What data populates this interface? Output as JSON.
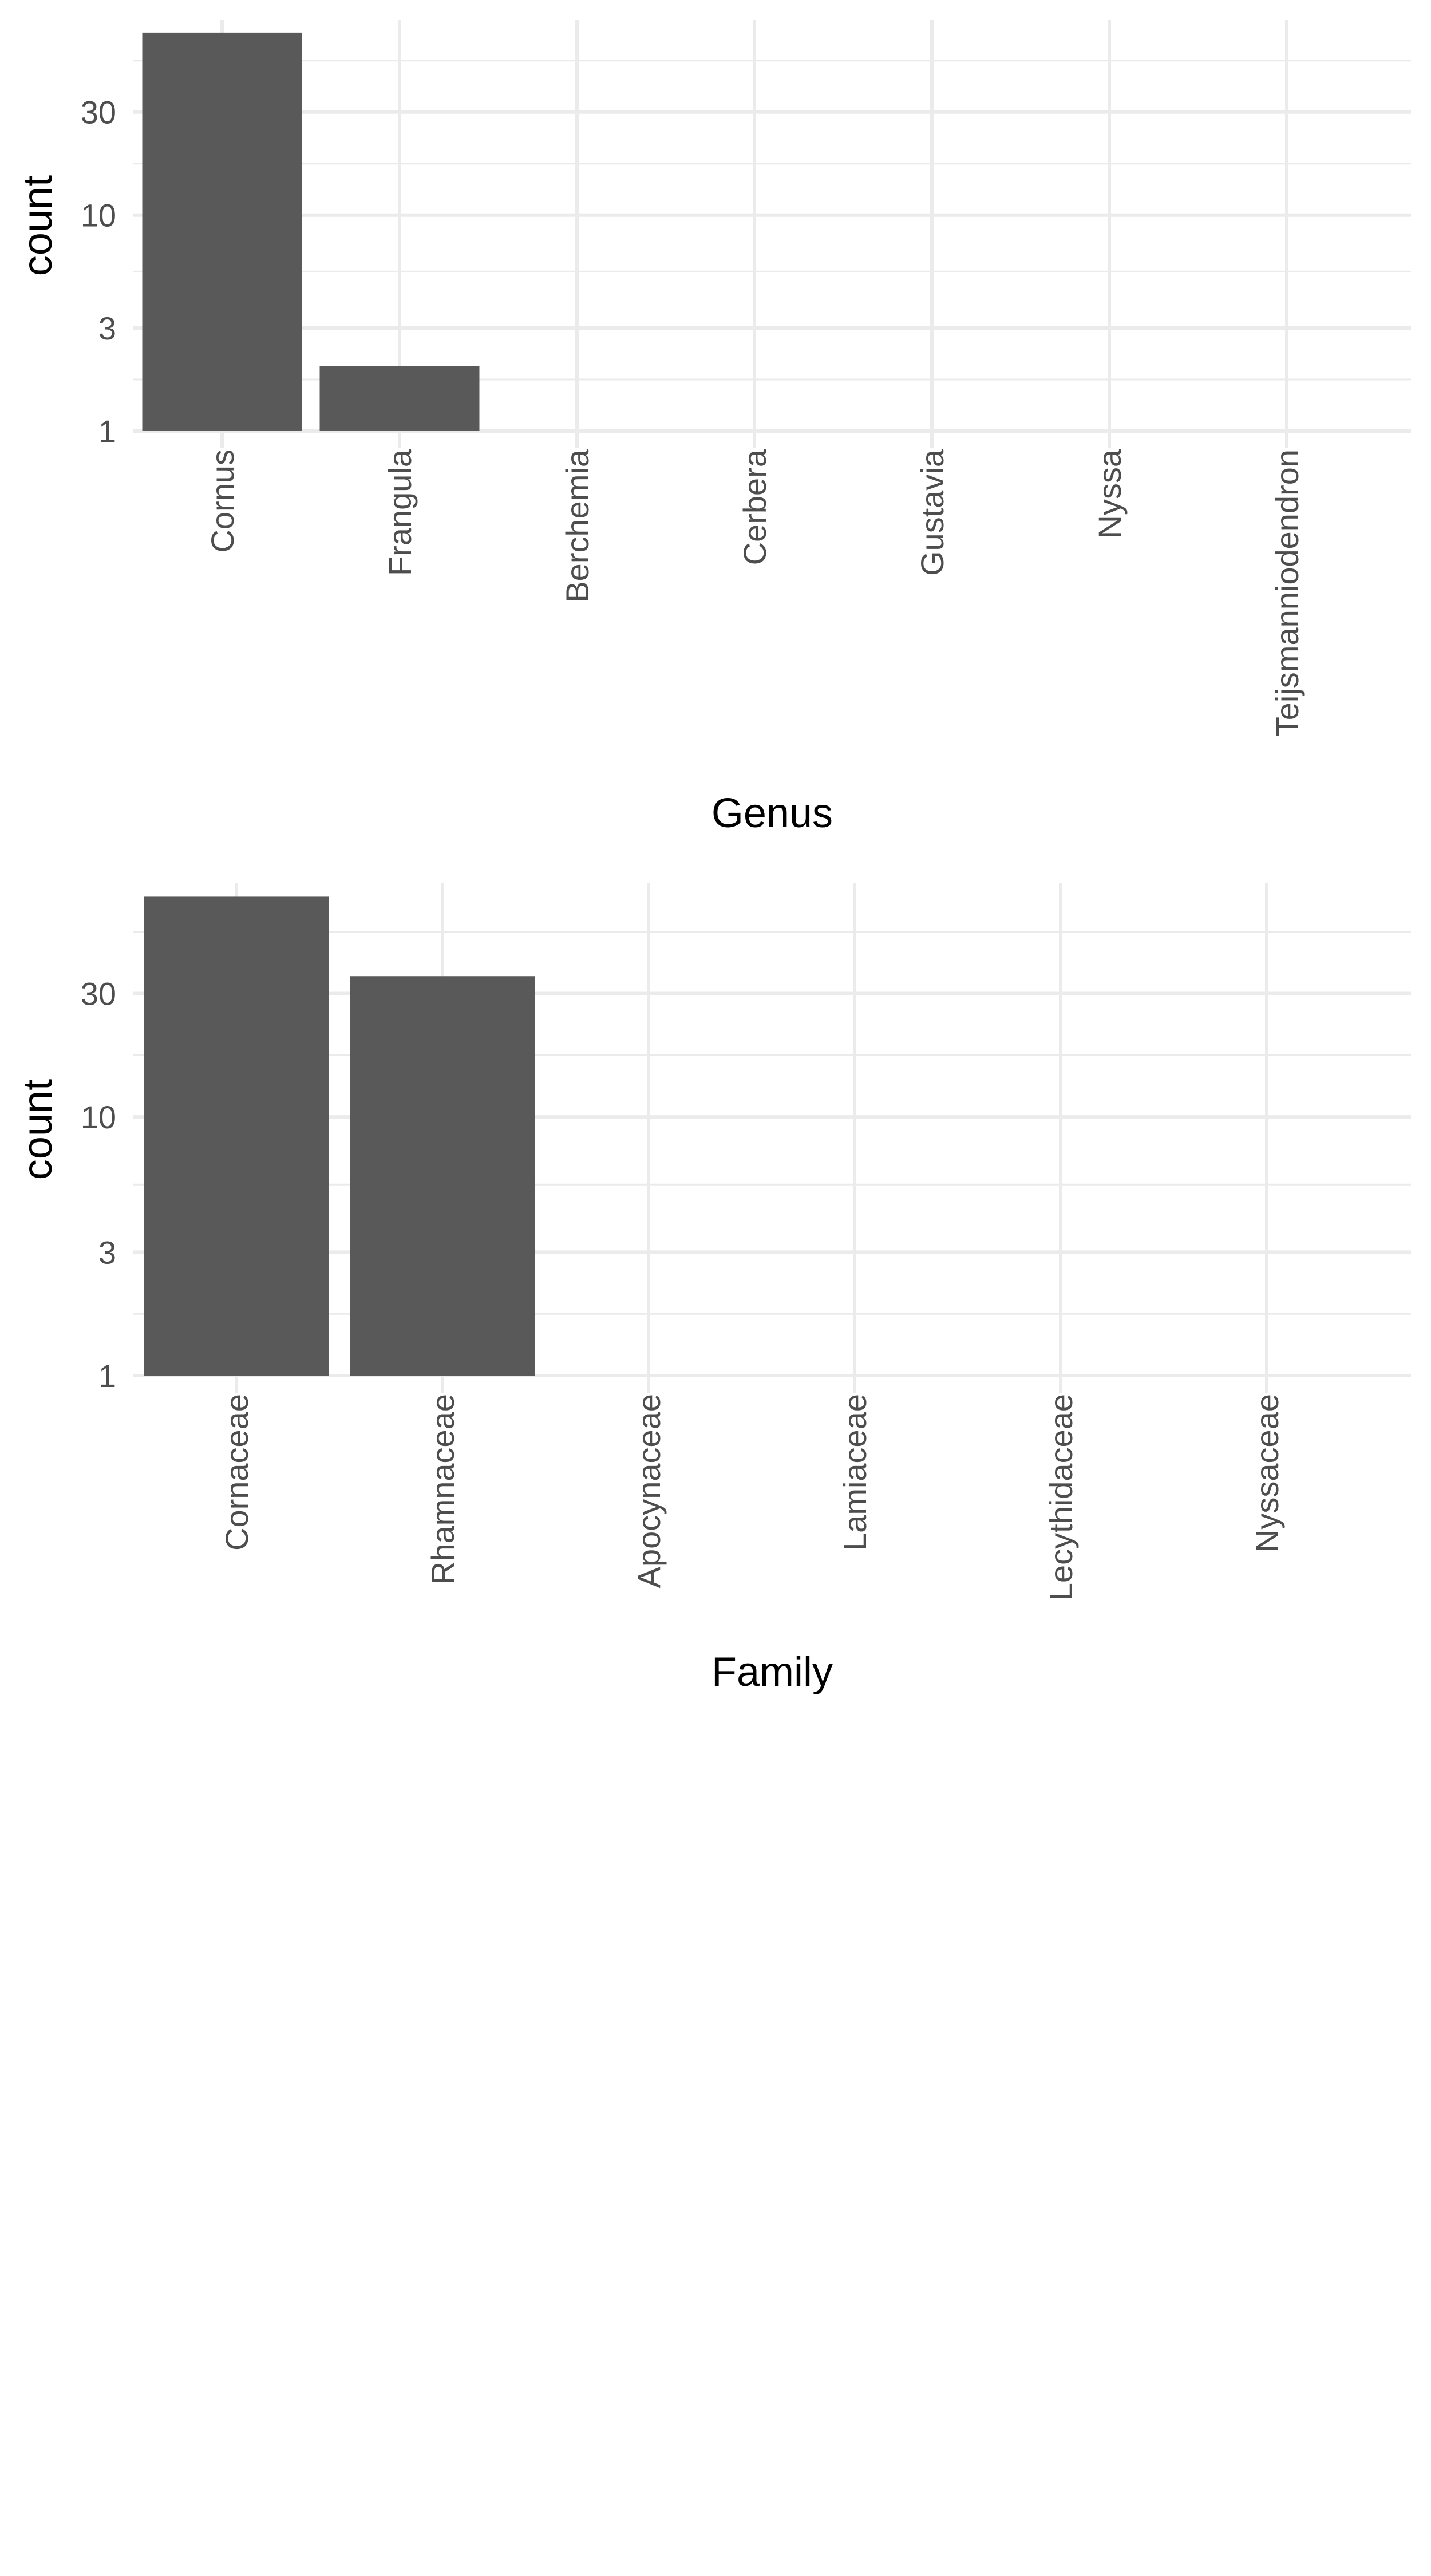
{
  "colors": {
    "bar": "#595959",
    "grid": "#ebebeb",
    "tick_text": "#4d4d4d",
    "title_text": "#000000",
    "background": "#ffffff"
  },
  "chart_data": [
    {
      "type": "bar",
      "xlabel": "Genus",
      "ylabel": "count",
      "y_scale": "log10",
      "y_ticks": [
        1,
        3,
        10,
        30
      ],
      "y_tick_labels": [
        "1",
        "3",
        "10",
        "30"
      ],
      "ylim": [
        1,
        80
      ],
      "grid": true,
      "legend": "none",
      "categories": [
        "Cornus",
        "Frangula",
        "Berchemia",
        "Cerbera",
        "Gustavia",
        "Nyssa",
        "Teijsmanniodendron"
      ],
      "values": [
        70,
        2,
        1,
        1,
        1,
        1,
        1
      ]
    },
    {
      "type": "bar",
      "xlabel": "Family",
      "ylabel": "count",
      "y_scale": "log10",
      "y_ticks": [
        1,
        3,
        10,
        30
      ],
      "y_tick_labels": [
        "1",
        "3",
        "10",
        "30"
      ],
      "ylim": [
        1,
        80
      ],
      "grid": true,
      "legend": "none",
      "categories": [
        "Cornaceae",
        "Rhamnaceae",
        "Apocynaceae",
        "Lamiaceae",
        "Lecythidaceae",
        "Nyssaceae"
      ],
      "values": [
        71,
        35,
        1,
        1,
        1,
        1
      ]
    }
  ]
}
